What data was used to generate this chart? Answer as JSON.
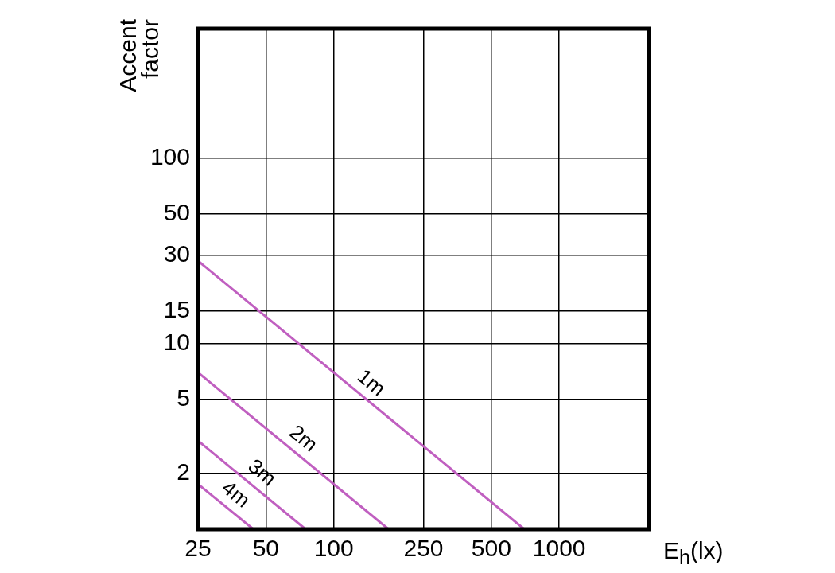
{
  "chart_data": {
    "type": "line",
    "xlabel": "E$_{h}$(lx)",
    "ylabel": "Accent factor",
    "log": "xy",
    "xlim": [
      25,
      2500
    ],
    "xticks": [
      25,
      50,
      100,
      250,
      500,
      1000
    ],
    "ylim": [
      1,
      500
    ],
    "yticks": [
      2,
      5,
      10,
      15,
      30,
      50,
      100
    ],
    "grid": true,
    "legend": false,
    "marker": "none",
    "line_style": "solid",
    "series": [
      {
        "name": "1m",
        "color": "#c05fc0",
        "x": [
          25,
          700
        ],
        "values": [
          28,
          1
        ]
      },
      {
        "name": "2m",
        "color": "#c05fc0",
        "x": [
          25,
          175
        ],
        "values": [
          7,
          1
        ]
      },
      {
        "name": "3m",
        "color": "#c05fc0",
        "x": [
          25,
          75
        ],
        "values": [
          3,
          1
        ]
      },
      {
        "name": "4m",
        "color": "#c05fc0",
        "x": [
          25,
          44
        ],
        "values": [
          1.75,
          1
        ]
      }
    ]
  }
}
